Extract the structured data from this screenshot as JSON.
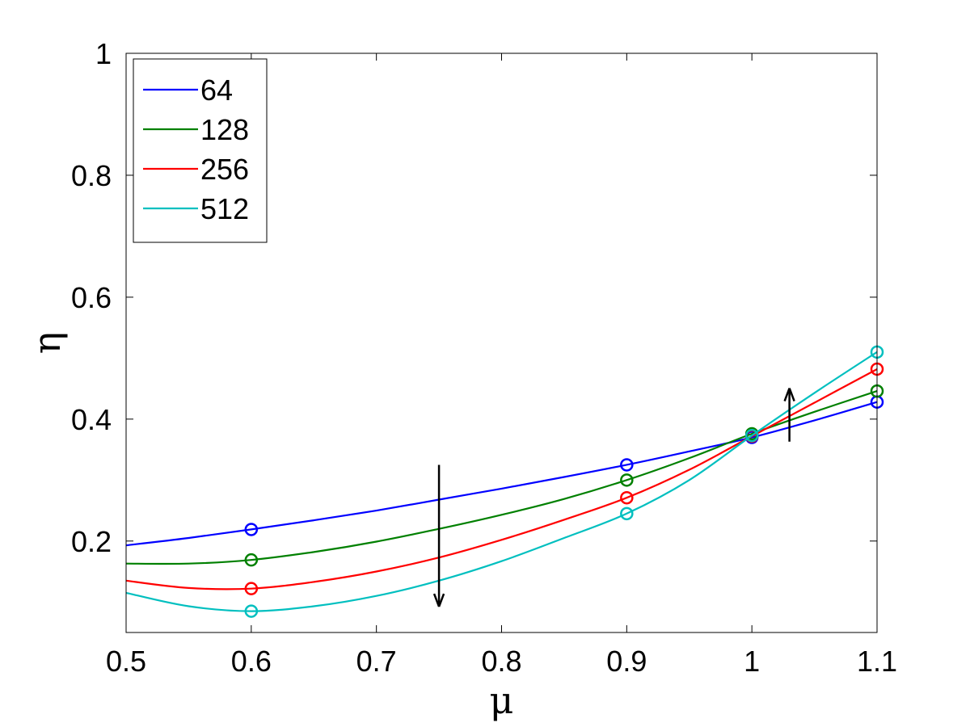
{
  "chart_data": {
    "type": "line",
    "xlabel": "μ",
    "ylabel": "η",
    "xlim": [
      0.5,
      1.1
    ],
    "ylim": [
      0.05,
      1.0
    ],
    "x_ticks": [
      "0.5",
      "0.6",
      "0.7",
      "0.8",
      "0.9",
      "1",
      "1.1"
    ],
    "x_tick_values": [
      0.5,
      0.6,
      0.7,
      0.8,
      0.9,
      1.0,
      1.1
    ],
    "y_ticks": [
      "0.2",
      "0.4",
      "0.6",
      "0.8",
      "1"
    ],
    "y_tick_values": [
      0.2,
      0.4,
      0.6,
      0.8,
      1.0
    ],
    "legend_position": "top-left",
    "grid": false,
    "series": [
      {
        "name": "64",
        "color": "#0000ff",
        "markers_x": [
          0.6,
          0.9,
          1.0,
          1.1
        ],
        "markers_y": [
          0.219,
          0.325,
          0.37,
          0.428
        ],
        "curve_x": [
          0.5,
          0.55,
          0.6,
          0.65,
          0.7,
          0.75,
          0.8,
          0.85,
          0.9,
          0.95,
          1.0,
          1.05,
          1.1
        ],
        "curve_y": [
          0.193,
          0.205,
          0.219,
          0.234,
          0.25,
          0.268,
          0.286,
          0.305,
          0.325,
          0.347,
          0.37,
          0.398,
          0.428
        ]
      },
      {
        "name": "128",
        "color": "#008000",
        "markers_x": [
          0.6,
          0.9,
          1.0,
          1.1
        ],
        "markers_y": [
          0.169,
          0.3,
          0.376,
          0.446
        ],
        "curve_x": [
          0.5,
          0.55,
          0.6,
          0.65,
          0.7,
          0.75,
          0.8,
          0.85,
          0.9,
          0.95,
          1.0,
          1.05,
          1.1
        ],
        "curve_y": [
          0.163,
          0.163,
          0.169,
          0.182,
          0.199,
          0.22,
          0.243,
          0.269,
          0.3,
          0.336,
          0.376,
          0.412,
          0.446
        ]
      },
      {
        "name": "256",
        "color": "#ff0000",
        "markers_x": [
          0.6,
          0.9,
          1.0,
          1.1
        ],
        "markers_y": [
          0.122,
          0.271,
          0.372,
          0.482
        ],
        "curve_x": [
          0.5,
          0.55,
          0.6,
          0.65,
          0.7,
          0.75,
          0.8,
          0.85,
          0.9,
          0.95,
          1.0,
          1.05,
          1.1
        ],
        "curve_y": [
          0.135,
          0.123,
          0.122,
          0.133,
          0.15,
          0.173,
          0.202,
          0.235,
          0.271,
          0.317,
          0.372,
          0.427,
          0.482
        ]
      },
      {
        "name": "512",
        "color": "#00bfbf",
        "markers_x": [
          0.6,
          0.9,
          1.0,
          1.1
        ],
        "markers_y": [
          0.085,
          0.245,
          0.373,
          0.51
        ],
        "curve_x": [
          0.5,
          0.55,
          0.6,
          0.65,
          0.7,
          0.75,
          0.8,
          0.85,
          0.9,
          0.95,
          1.0,
          1.05,
          1.1
        ],
        "curve_y": [
          0.115,
          0.093,
          0.085,
          0.093,
          0.11,
          0.135,
          0.167,
          0.205,
          0.245,
          0.3,
          0.373,
          0.443,
          0.51
        ]
      }
    ],
    "annotations": [
      {
        "type": "arrow",
        "direction": "down",
        "x": 0.75,
        "y_from": 0.325,
        "y_to": 0.095
      },
      {
        "type": "arrow",
        "direction": "up",
        "x": 1.03,
        "y_from": 0.363,
        "y_to": 0.448
      }
    ]
  }
}
